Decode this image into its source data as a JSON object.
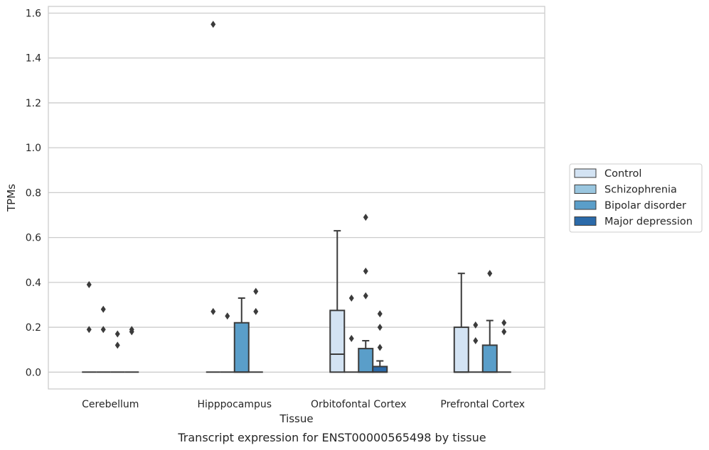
{
  "chart_data": {
    "type": "box",
    "title": "",
    "caption": "Transcript expression for ENST00000565498 by tissue",
    "xlabel": "Tissue",
    "ylabel": "TPMs",
    "ylim": [
      -0.075,
      1.63
    ],
    "yticks": [
      "0.0",
      "0.2",
      "0.4",
      "0.6",
      "0.8",
      "1.0",
      "1.2",
      "1.4",
      "1.6"
    ],
    "ytick_values": [
      0,
      0.2,
      0.4,
      0.6,
      0.8,
      1.0,
      1.2,
      1.4,
      1.6
    ],
    "categories": [
      "Cerebellum",
      "Hipppocampus",
      "Orbitofontal Cortex",
      "Prefrontal Cortex"
    ],
    "grid": "horizontal",
    "legend_position": "right",
    "series": [
      {
        "name": "Control",
        "color": "#d3e3f3",
        "boxes": [
          {
            "q1": 0,
            "median": 0,
            "q3": 0,
            "whisker_low": 0,
            "whisker_high": 0,
            "outliers": [
              0.39,
              0.19
            ]
          },
          {
            "q1": 0,
            "median": 0,
            "q3": 0,
            "whisker_low": 0,
            "whisker_high": 0,
            "outliers": [
              1.55,
              0.27
            ]
          },
          {
            "q1": 0,
            "median": 0.08,
            "q3": 0.275,
            "whisker_low": 0,
            "whisker_high": 0.63,
            "outliers": []
          },
          {
            "q1": 0,
            "median": 0,
            "q3": 0.2,
            "whisker_low": 0,
            "whisker_high": 0.44,
            "outliers": []
          }
        ]
      },
      {
        "name": "Schizophrenia",
        "color": "#9ac6df",
        "boxes": [
          {
            "q1": 0,
            "median": 0,
            "q3": 0,
            "whisker_low": 0,
            "whisker_high": 0,
            "outliers": [
              0.28,
              0.19
            ]
          },
          {
            "q1": 0,
            "median": 0,
            "q3": 0,
            "whisker_low": 0,
            "whisker_high": 0,
            "outliers": [
              0.25
            ]
          },
          {
            "q1": 0,
            "median": 0,
            "q3": 0,
            "whisker_low": 0,
            "whisker_high": 0,
            "outliers": [
              0.33,
              0.15
            ]
          },
          {
            "q1": 0,
            "median": 0,
            "q3": 0,
            "whisker_low": 0,
            "whisker_high": 0,
            "outliers": [
              0.21,
              0.14
            ]
          }
        ]
      },
      {
        "name": "Bipolar disorder",
        "color": "#5a9ec9",
        "boxes": [
          {
            "q1": 0,
            "median": 0,
            "q3": 0,
            "whisker_low": 0,
            "whisker_high": 0,
            "outliers": [
              0.17,
              0.12
            ]
          },
          {
            "q1": 0,
            "median": 0,
            "q3": 0.22,
            "whisker_low": 0,
            "whisker_high": 0.33,
            "outliers": []
          },
          {
            "q1": 0,
            "median": 0,
            "q3": 0.105,
            "whisker_low": 0,
            "whisker_high": 0.14,
            "outliers": [
              0.69,
              0.45,
              0.34
            ]
          },
          {
            "q1": 0,
            "median": 0,
            "q3": 0.12,
            "whisker_low": 0,
            "whisker_high": 0.23,
            "outliers": [
              0.44
            ]
          }
        ]
      },
      {
        "name": "Major depression",
        "color": "#2b6aa9",
        "boxes": [
          {
            "q1": 0,
            "median": 0,
            "q3": 0,
            "whisker_low": 0,
            "whisker_high": 0,
            "outliers": [
              0.19,
              0.18
            ]
          },
          {
            "q1": 0,
            "median": 0,
            "q3": 0,
            "whisker_low": 0,
            "whisker_high": 0,
            "outliers": [
              0.36,
              0.27
            ]
          },
          {
            "q1": 0,
            "median": 0,
            "q3": 0.025,
            "whisker_low": 0,
            "whisker_high": 0.05,
            "outliers": [
              0.26,
              0.2,
              0.11
            ]
          },
          {
            "q1": 0,
            "median": 0,
            "q3": 0,
            "whisker_low": 0,
            "whisker_high": 0,
            "outliers": [
              0.22,
              0.18
            ]
          }
        ]
      }
    ]
  }
}
